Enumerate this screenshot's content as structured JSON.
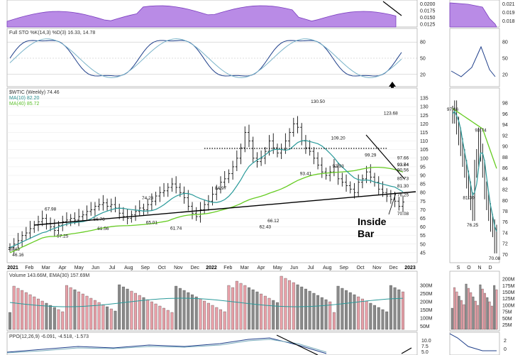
{
  "chart_data": {
    "type": "line",
    "series_name": "$WTIC (Weekly) 74.46",
    "x_labels": [
      "2021",
      "Feb",
      "Mar",
      "Apr",
      "May",
      "Jun",
      "Jul",
      "Aug",
      "Sep",
      "Oct",
      "Nov",
      "Dec",
      "2022",
      "Feb",
      "Mar",
      "Apr",
      "May",
      "Jun",
      "Jul",
      "Aug",
      "Sep",
      "Oct",
      "Nov",
      "Dec",
      "2023"
    ],
    "inset_x_labels": [
      "S",
      "O",
      "N",
      "D"
    ],
    "price": {
      "ylim": [
        40,
        140
      ],
      "ticks": [
        45,
        50,
        55,
        60,
        65,
        70,
        75,
        80,
        85,
        90,
        95,
        100,
        105,
        110,
        115,
        120,
        125,
        130,
        135
      ],
      "legend": [
        "$WTIC (Weekly) 74.46",
        "MA(10) 82.20",
        "MA(40) 85.72"
      ],
      "closes": [
        48,
        50,
        52,
        55,
        56.5,
        59,
        61,
        63,
        65,
        62,
        60,
        58,
        61,
        63,
        64,
        65,
        64,
        66,
        67,
        69,
        70,
        72,
        73,
        74,
        72,
        73,
        71,
        68,
        66,
        65,
        67,
        69,
        71,
        70,
        73,
        75,
        78,
        80,
        81,
        83,
        85,
        83,
        80,
        77,
        72,
        68,
        66,
        70,
        73,
        75,
        79,
        82,
        86,
        88,
        91,
        95,
        100,
        106,
        115,
        110,
        100,
        98,
        100,
        104,
        110,
        106,
        103,
        105,
        110,
        115,
        120,
        118,
        110,
        106,
        104,
        100,
        96,
        92,
        90,
        92,
        95,
        88,
        86,
        84,
        82,
        80,
        86,
        88,
        92,
        89,
        86,
        82,
        80,
        78,
        76,
        75,
        72,
        74.46
      ],
      "annotations": [
        {
          "label": "49.43",
          "x": 1,
          "y": 49.43
        },
        {
          "label": "46.16",
          "x": 2,
          "y": 46.16
        },
        {
          "label": "57.25",
          "x": 13,
          "y": 57.25
        },
        {
          "label": "67.98",
          "x": 10,
          "y": 67.98
        },
        {
          "label": "66.76",
          "x": 22,
          "y": 66.76
        },
        {
          "label": "61.56",
          "x": 23,
          "y": 61.56
        },
        {
          "label": "74.23",
          "x": 34,
          "y": 74.23
        },
        {
          "label": "65.01",
          "x": 35,
          "y": 65.01
        },
        {
          "label": "61.74",
          "x": 41,
          "y": 61.74
        },
        {
          "label": "84.97",
          "x": 52,
          "y": 84.97
        },
        {
          "label": "62.43",
          "x": 63,
          "y": 62.43
        },
        {
          "label": "66.12",
          "x": 65,
          "y": 66.12
        },
        {
          "label": "130.50",
          "x": 76,
          "y": 130.5
        },
        {
          "label": "93.41",
          "x": 73,
          "y": 93.41
        },
        {
          "label": "109.20",
          "x": 81,
          "y": 109.2
        },
        {
          "label": "92.93",
          "x": 81,
          "y": 92.93
        },
        {
          "label": "99.29",
          "x": 89,
          "y": 99.29
        },
        {
          "label": "123.68",
          "x": 94,
          "y": 123.68
        },
        {
          "label": "90.56",
          "x": 100,
          "y": 90.56
        },
        {
          "label": "97.66",
          "x": 110,
          "y": 97.66
        },
        {
          "label": "85.73",
          "x": 103,
          "y": 85.73
        },
        {
          "label": "93.64",
          "x": 119,
          "y": 93.64
        },
        {
          "label": "93.74",
          "x": 125,
          "y": 93.74
        },
        {
          "label": "81.30",
          "x": 118,
          "y": 81.3
        },
        {
          "label": "76.25",
          "x": 112,
          "y": 76.25
        },
        {
          "label": "70.08",
          "x": 130,
          "y": 70.08
        }
      ],
      "text_notes": [
        "Inside",
        "Bar"
      ]
    },
    "inset_price": {
      "ticks": [
        70,
        72,
        74,
        76,
        78,
        80,
        82,
        84,
        86,
        88,
        90,
        92,
        94,
        96,
        98
      ],
      "annotations": [
        {
          "label": "97.66",
          "y": 97.66
        },
        {
          "label": "93.74",
          "y": 93.74
        },
        {
          "label": "81.30",
          "y": 81.3
        },
        {
          "label": "76.25",
          "y": 76.25
        },
        {
          "label": "70.08",
          "y": 70.08
        }
      ]
    },
    "top_panel": {
      "ticks": [
        "0.0200",
        "0.0175",
        "0.0150",
        "0.0125"
      ],
      "inset_ticks": [
        "0.021",
        "0.019",
        "0.018"
      ]
    },
    "stochastic": {
      "title": "Full STO %K(14,3) %D(3) 16.33, 14.78",
      "ticks": [
        20,
        50,
        80
      ]
    },
    "volume": {
      "title": "Volume 143.66M, EMA(30) 157.69M",
      "ticks": [
        "50M",
        "100M",
        "150M",
        "200M",
        "250M",
        "300M"
      ],
      "inset_ticks": [
        "25M",
        "50M",
        "75M",
        "100M",
        "125M",
        "150M",
        "175M",
        "200M"
      ]
    },
    "ppo": {
      "title": "PPO(12,26,9) -6.091, -4.518, -1.573",
      "ticks": [
        "10.0",
        "7.5",
        "5.0"
      ],
      "inset_ticks": [
        "2",
        "0"
      ]
    }
  }
}
